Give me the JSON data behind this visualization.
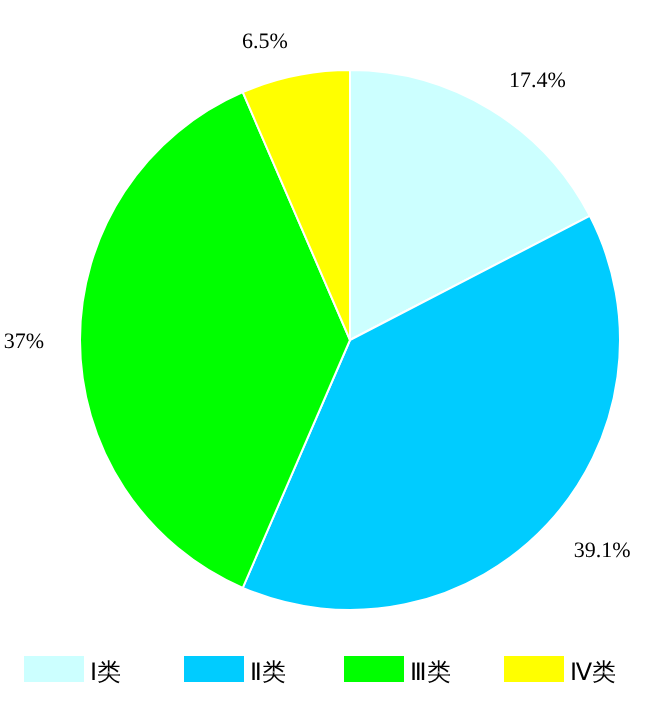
{
  "chart_data": {
    "type": "pie",
    "categories": [
      "Ⅰ类",
      "Ⅱ类",
      "Ⅲ类",
      "Ⅳ类"
    ],
    "values": [
      17.4,
      39.1,
      37,
      6.5
    ],
    "colors": [
      "#ccffff",
      "#00ccff",
      "#00ff00",
      "#ffff00"
    ],
    "value_labels": [
      "17.4%",
      "39.1%",
      "37%",
      "6.5%"
    ],
    "legend": "bottom"
  }
}
